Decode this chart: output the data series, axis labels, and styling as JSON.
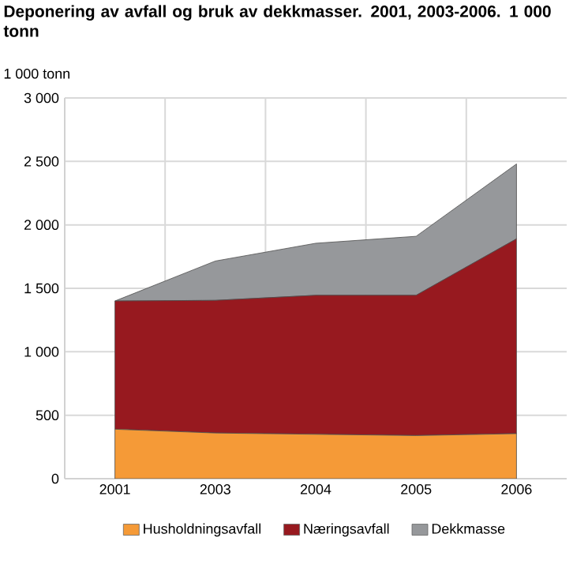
{
  "chart_data": {
    "type": "area",
    "title": "Deponering av avfall og bruk av dekkmasser. 2001, 2003-2006. 1 000 tonn",
    "ylabel": "1 000 tonn",
    "categories": [
      "2001",
      "2003",
      "2004",
      "2005",
      "2006"
    ],
    "stacked": true,
    "series": [
      {
        "name": "Husholdningsavfall",
        "color": "#f59a37",
        "values": [
          390,
          360,
          350,
          340,
          355
        ]
      },
      {
        "name": "Næringsavfall",
        "color": "#97191f",
        "values": [
          1010,
          1045,
          1095,
          1105,
          1535
        ]
      },
      {
        "name": "Dekkmasse",
        "color": "#96989b",
        "values": [
          0,
          310,
          410,
          465,
          590
        ]
      }
    ],
    "ylim": [
      0,
      3000
    ],
    "yticks": [
      {
        "value": 0,
        "label": "0"
      },
      {
        "value": 500,
        "label": "500"
      },
      {
        "value": 1000,
        "label": "1 000"
      },
      {
        "value": 1500,
        "label": "1 500"
      },
      {
        "value": 2000,
        "label": "2 000"
      },
      {
        "value": 2500,
        "label": "2 500"
      },
      {
        "value": 3000,
        "label": "3 000"
      }
    ],
    "grid": true,
    "legend": "bottom"
  }
}
